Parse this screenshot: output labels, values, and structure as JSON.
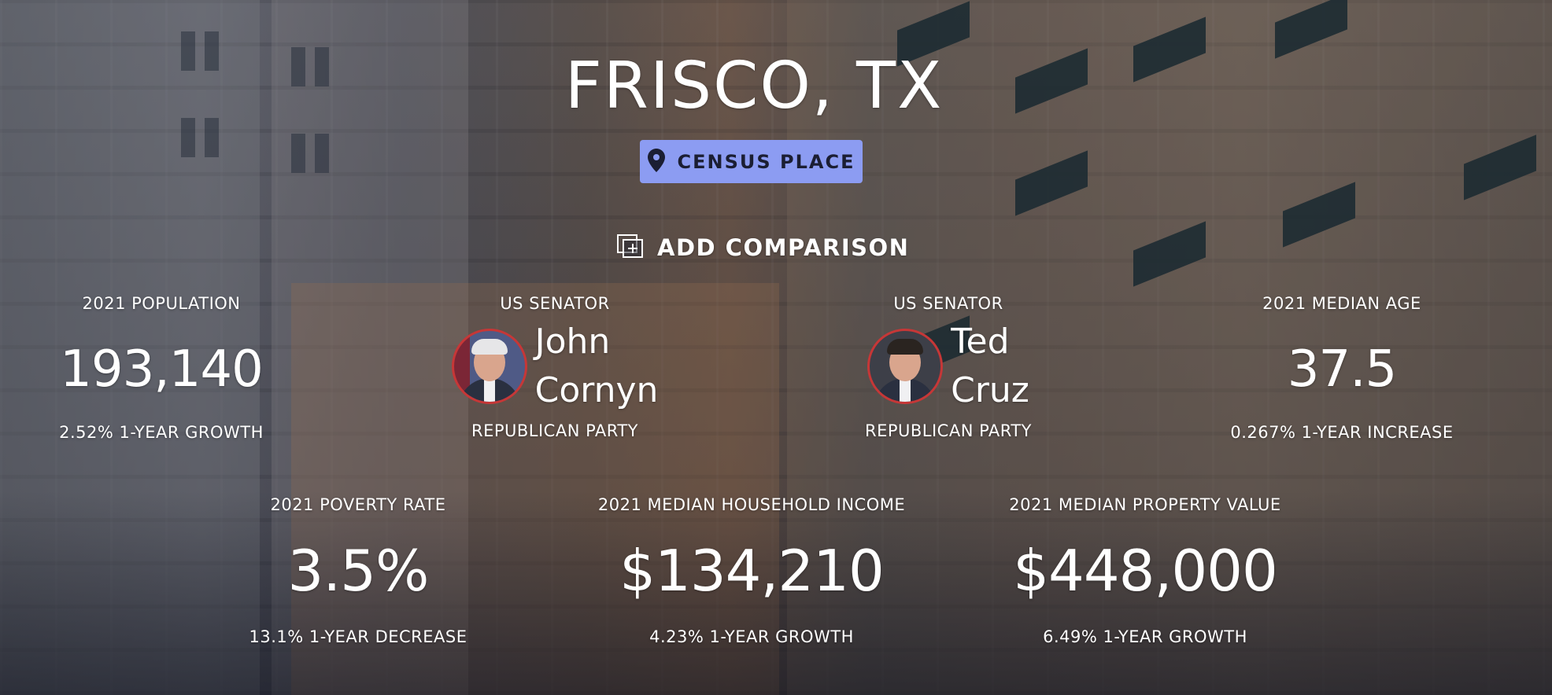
{
  "place": {
    "title": "FRISCO, TX",
    "type_badge": "CENSUS PLACE",
    "compare_label": "ADD COMPARISON"
  },
  "stats_row1": {
    "population": {
      "label": "2021 POPULATION",
      "value": "193,140",
      "sub": "2.52% 1-YEAR GROWTH"
    },
    "median_age": {
      "label": "2021 MEDIAN AGE",
      "value": "37.5",
      "sub": "0.267% 1-YEAR INCREASE"
    }
  },
  "senators": [
    {
      "label": "US SENATOR",
      "first": "John",
      "last": "Cornyn",
      "party": "REPUBLICAN PARTY"
    },
    {
      "label": "US SENATOR",
      "first": "Ted",
      "last": "Cruz",
      "party": "REPUBLICAN PARTY"
    }
  ],
  "stats_row2": {
    "poverty": {
      "label": "2021 POVERTY RATE",
      "value": "3.5%",
      "sub": "13.1% 1-YEAR DECREASE"
    },
    "income": {
      "label": "2021 MEDIAN HOUSEHOLD INCOME",
      "value": "$134,210",
      "sub": "4.23% 1-YEAR GROWTH"
    },
    "property": {
      "label": "2021 MEDIAN PROPERTY VALUE",
      "value": "$448,000",
      "sub": "6.49% 1-YEAR GROWTH"
    }
  },
  "colors": {
    "badge_bg": "#8c9cf2",
    "badge_text": "#1b1e33",
    "avatar_ring": "#c63737",
    "text": "#ffffff"
  },
  "icons": {
    "badge": "map-pin-icon",
    "compare": "add-comparison-icon"
  }
}
